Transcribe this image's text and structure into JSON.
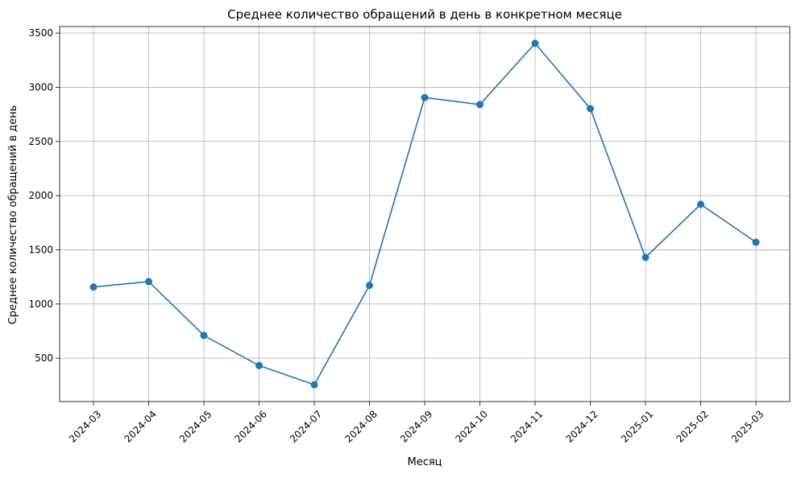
{
  "chart_data": {
    "type": "line",
    "title": "Среднее количество обращений в день в конкретном месяце",
    "xlabel": "Месяц",
    "ylabel": "Среднее количество обращений в день",
    "categories": [
      "2024-03",
      "2024-04",
      "2024-05",
      "2024-06",
      "2024-07",
      "2024-08",
      "2024-09",
      "2024-10",
      "2024-11",
      "2024-12",
      "2025-01",
      "2025-02",
      "2025-03"
    ],
    "series": [
      {
        "values": [
          1157,
          1207,
          710,
          432,
          255,
          1172,
          2905,
          2840,
          3405,
          2803,
          1430,
          1920,
          1570
        ],
        "color": "#1f77b4",
        "marker": "circle"
      }
    ],
    "ylim": [
      100,
      3560
    ],
    "yticks": [
      500,
      1000,
      1500,
      2000,
      2500,
      3000,
      3500
    ],
    "grid": true,
    "legend": "none"
  }
}
